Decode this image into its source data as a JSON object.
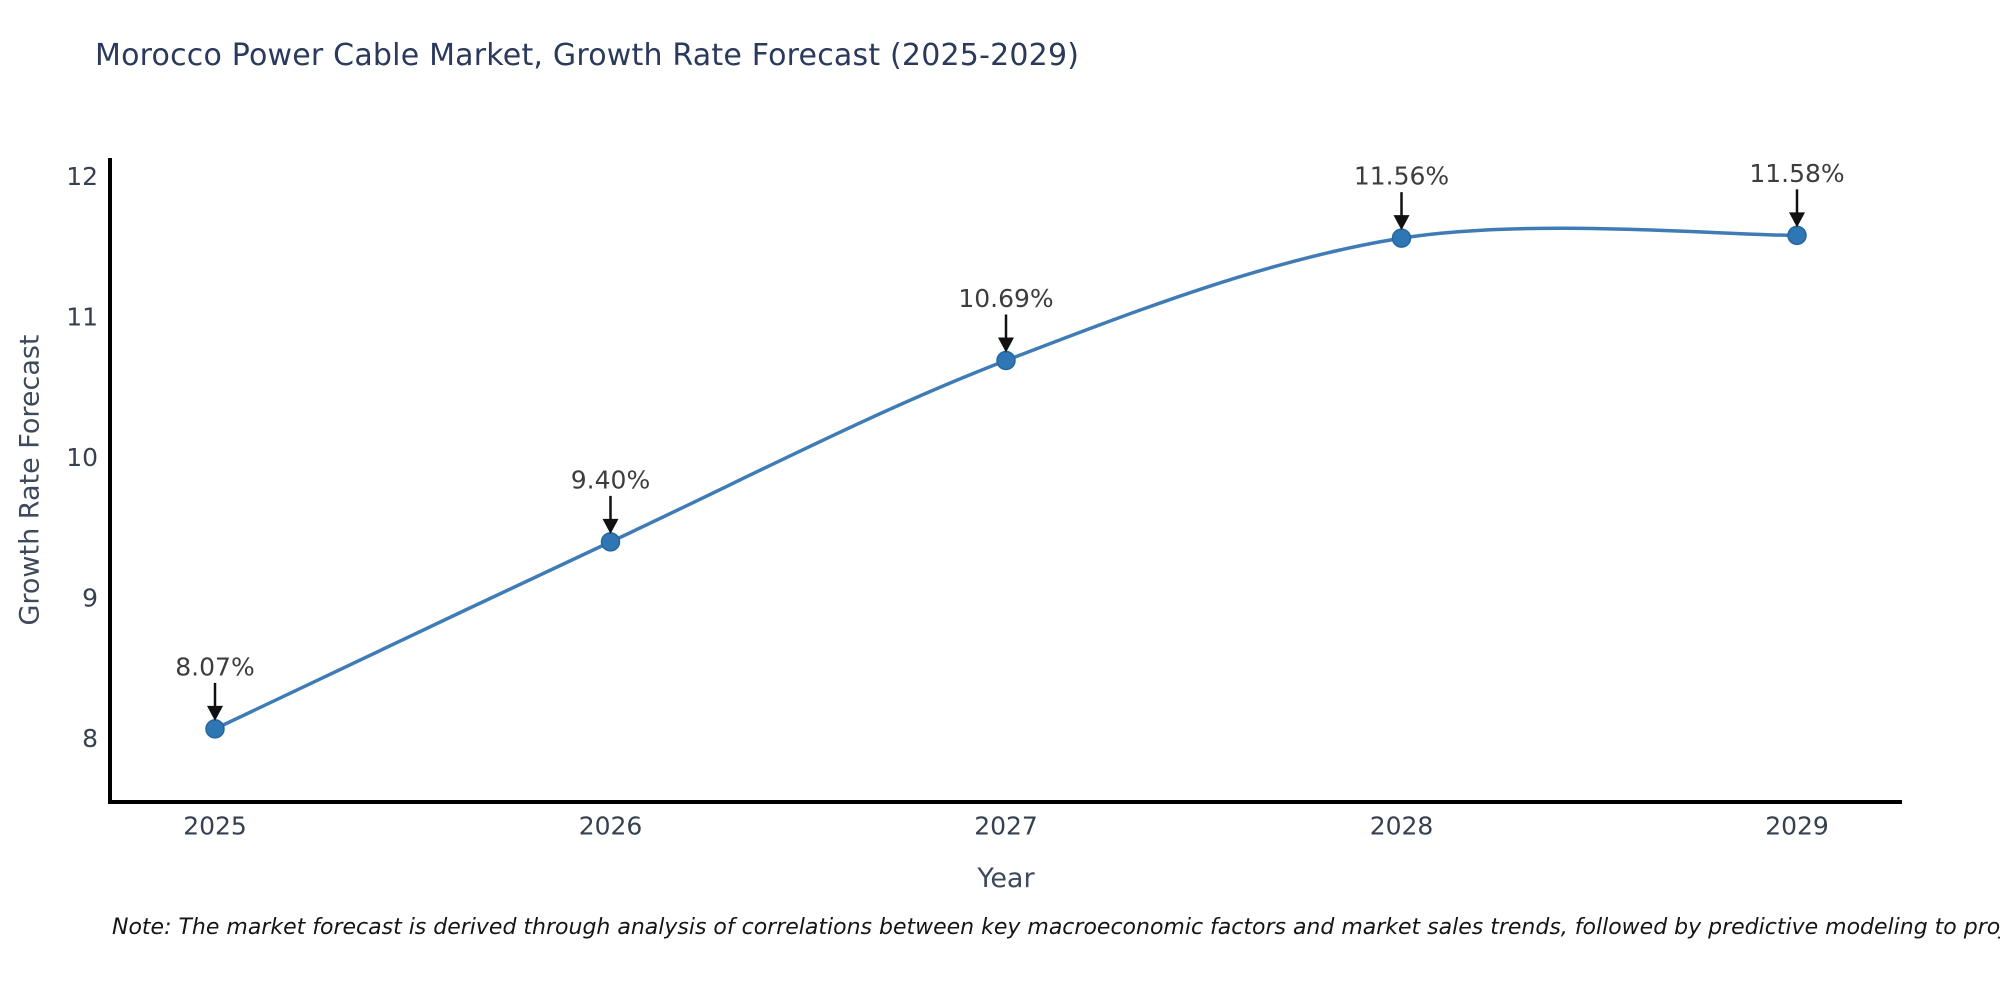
{
  "title": "Morocco Power Cable Market, Growth Rate Forecast (2025-2029)",
  "note": "Note: The market forecast is derived through analysis of correlations between key macroeconomic factors and market sales trends, followed by predictive modeling to project future sales.",
  "chart_data": {
    "type": "line",
    "title": "Morocco Power Cable Market, Growth Rate Forecast (2025-2029)",
    "x": [
      "2025",
      "2026",
      "2027",
      "2028",
      "2029"
    ],
    "series": [
      {
        "name": "Growth Rate Forecast",
        "values": [
          8.07,
          9.4,
          10.69,
          11.56,
          11.58
        ]
      }
    ],
    "point_labels": [
      "8.07%",
      "9.40%",
      "10.69%",
      "11.56%",
      "11.58%"
    ],
    "xlabel": "Year",
    "ylabel": "Growth Rate Forecast",
    "yticks": [
      8,
      9,
      10,
      11,
      12
    ],
    "ylim": [
      7.55,
      12.13
    ],
    "grid": false,
    "line_shape": "spline",
    "line_color": "#3f7cb6",
    "marker_color": "#2f77b4",
    "marker_edge_color": "#25669d",
    "annotation_color": "#3d3d3d",
    "arrow_color": "#111111",
    "axis_color": "#000000",
    "tick_color": "#37404f",
    "axis_title_color": "#3d4a5c"
  }
}
